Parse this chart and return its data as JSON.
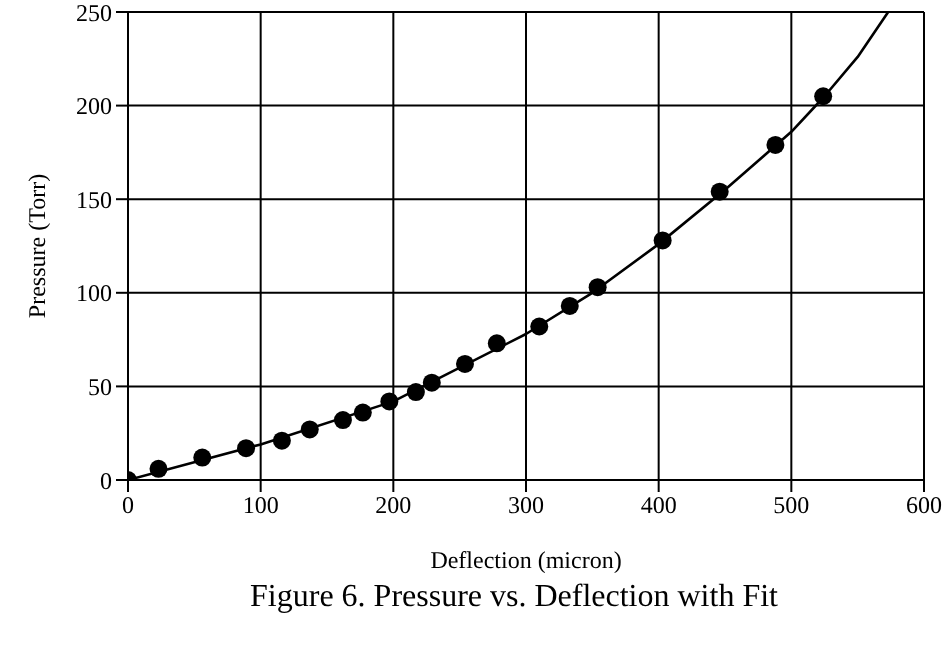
{
  "chart_data": {
    "type": "scatter",
    "xlabel": "Deflection (micron)",
    "ylabel": "Pressure (Torr)",
    "annotations": [
      "Figure 6. Pressure vs. Deflection with Fit"
    ],
    "series": [
      {
        "type": "scatter",
        "color": "#000000",
        "marker": "circle",
        "x": [
          0,
          23,
          56,
          89,
          116,
          137,
          162,
          177,
          197,
          217,
          229,
          254,
          278,
          310,
          333,
          354,
          403,
          446,
          488,
          524
        ],
        "values": [
          0,
          6,
          12,
          17,
          21,
          27,
          32,
          36,
          42,
          47,
          52,
          62,
          73,
          82,
          93,
          103,
          128,
          154,
          179,
          205
        ]
      },
      {
        "type": "line",
        "color": "#000000",
        "marker": "none",
        "line_style": "solid",
        "x": [
          0,
          100,
          200,
          300,
          350,
          400,
          450,
          500,
          525,
          550,
          573
        ],
        "values": [
          0,
          19,
          42,
          78,
          100,
          126,
          155,
          186,
          205,
          226,
          250
        ]
      }
    ],
    "xlim": [
      0,
      600
    ],
    "xticks": [
      0,
      100,
      200,
      300,
      400,
      500,
      600
    ],
    "ylim": [
      0,
      250
    ],
    "yticks": [
      0,
      50,
      100,
      150,
      200,
      250
    ],
    "grid": true,
    "legend": false
  }
}
